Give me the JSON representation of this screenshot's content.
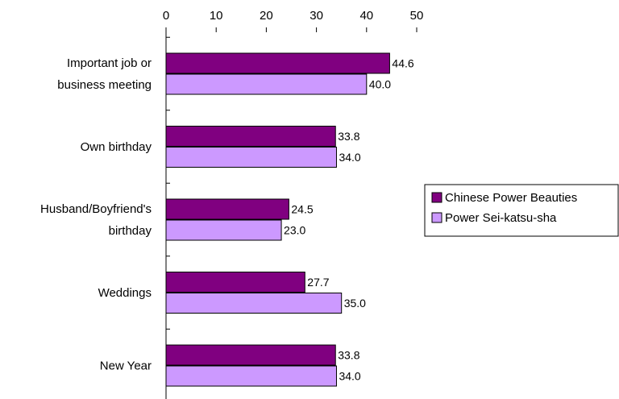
{
  "chart_data": {
    "type": "bar",
    "orientation": "horizontal",
    "title": "",
    "xlabel": "",
    "ylabel": "",
    "xlim": [
      0,
      50
    ],
    "xticks": [
      0,
      10,
      20,
      30,
      40,
      50
    ],
    "x_axis_position": "top",
    "grid": false,
    "legend_position": "right",
    "categories": [
      [
        "Important job or",
        "business meeting"
      ],
      [
        "Own birthday"
      ],
      [
        "Husband/Boyfriend's",
        "birthday"
      ],
      [
        "Weddings"
      ],
      [
        "New Year"
      ]
    ],
    "series": [
      {
        "name": "Chinese Power Beauties",
        "color": "#800080",
        "values": [
          44.6,
          33.8,
          24.5,
          27.7,
          33.8
        ],
        "labels": [
          "44.6",
          "33.8",
          "24.5",
          "27.7",
          "33.8"
        ]
      },
      {
        "name": "Power Sei-katsu-sha",
        "color": "#CC99FF",
        "values": [
          40.0,
          34.0,
          23.0,
          35.0,
          34.0
        ],
        "labels": [
          "40.0",
          "34.0",
          "23.0",
          "35.0",
          "34.0"
        ]
      }
    ]
  }
}
